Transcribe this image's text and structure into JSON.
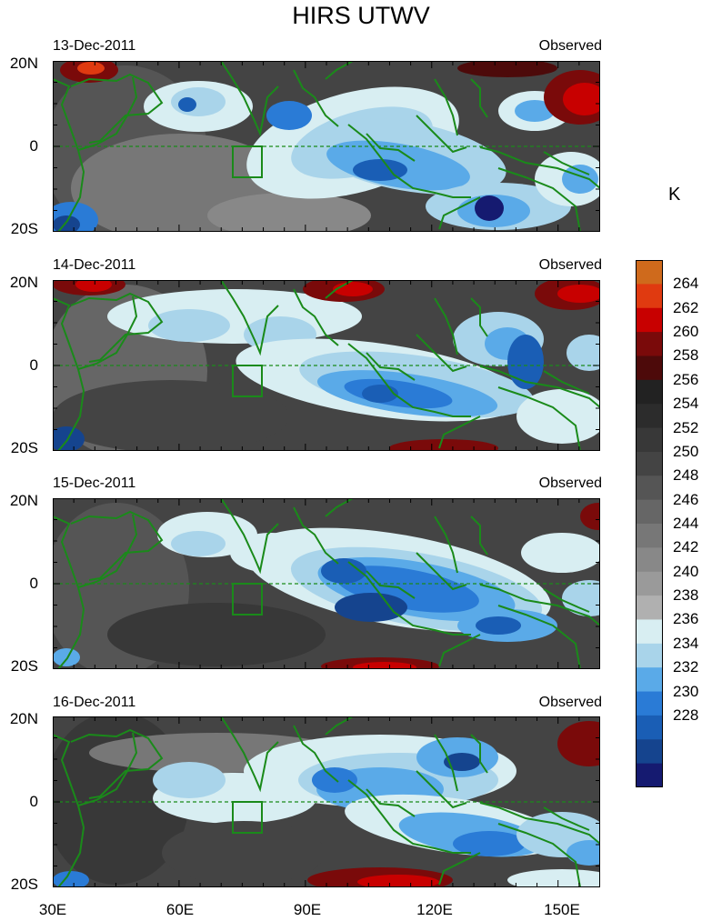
{
  "title": "HIRS UTWV",
  "unit": "K",
  "panels": [
    {
      "date": "13-Dec-2011",
      "label": "Observed"
    },
    {
      "date": "14-Dec-2011",
      "label": "Observed"
    },
    {
      "date": "15-Dec-2011",
      "label": "Observed"
    },
    {
      "date": "16-Dec-2011",
      "label": "Observed"
    }
  ],
  "y_ticks": [
    "20N",
    "0",
    "20S"
  ],
  "x_ticks": [
    "30E",
    "60E",
    "90E",
    "120E",
    "150E"
  ],
  "colorbar": {
    "labels": [
      "264",
      "262",
      "260",
      "258",
      "256",
      "254",
      "252",
      "250",
      "248",
      "246",
      "244",
      "242",
      "240",
      "238",
      "236",
      "234",
      "232",
      "230",
      "228"
    ],
    "colors": [
      "#cf6a1c",
      "#e03a10",
      "#c80000",
      "#7a0a0a",
      "#4d0a0a",
      "#222222",
      "#2c2c2c",
      "#383838",
      "#444444",
      "#555555",
      "#666666",
      "#777777",
      "#888888",
      "#9a9a9a",
      "#b0b0b0",
      "#d8eef2",
      "#a9d4ea",
      "#5aaae8",
      "#2a7bd6",
      "#1a5eb5",
      "#15448e",
      "#151a70"
    ]
  },
  "colors": {
    "coastline": "#1a8a1a",
    "equator": "#1a8a1a",
    "box": "#1a8a1a"
  }
}
